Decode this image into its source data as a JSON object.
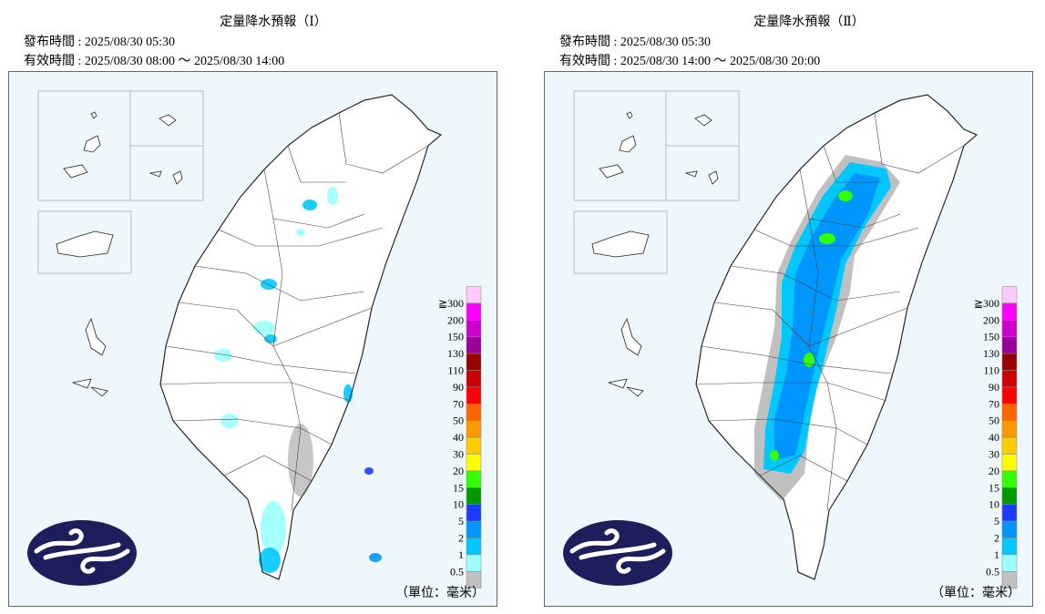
{
  "maps": [
    {
      "title": "定量降水預報（Ⅰ）",
      "issued": "發布時間 : 2025/08/30 05:30",
      "valid": "有效時間 : 2025/08/30 08:00 ～ 2025/08/30 14:00"
    },
    {
      "title": "定量降水預報（Ⅱ）",
      "issued": "發布時間 : 2025/08/30 05:30",
      "valid": "有效時間 : 2025/08/30 14:00 ～ 2025/08/30 20:00"
    }
  ],
  "legend": {
    "levels": [
      "≧300",
      200,
      150,
      130,
      110,
      90,
      70,
      50,
      40,
      30,
      20,
      15,
      10,
      5,
      2,
      1,
      0.5
    ],
    "colors": [
      "#ffc8ff",
      "#ff00ff",
      "#cc00cc",
      "#990099",
      "#990000",
      "#cc0000",
      "#ff0000",
      "#ff6600",
      "#ff9900",
      "#ffcc00",
      "#ffff00",
      "#33ff00",
      "#009900",
      "#1e3cff",
      "#0096ff",
      "#00c8ff",
      "#9bfffc",
      "#c0c0c0"
    ]
  },
  "unit": "（單位：毫米）"
}
